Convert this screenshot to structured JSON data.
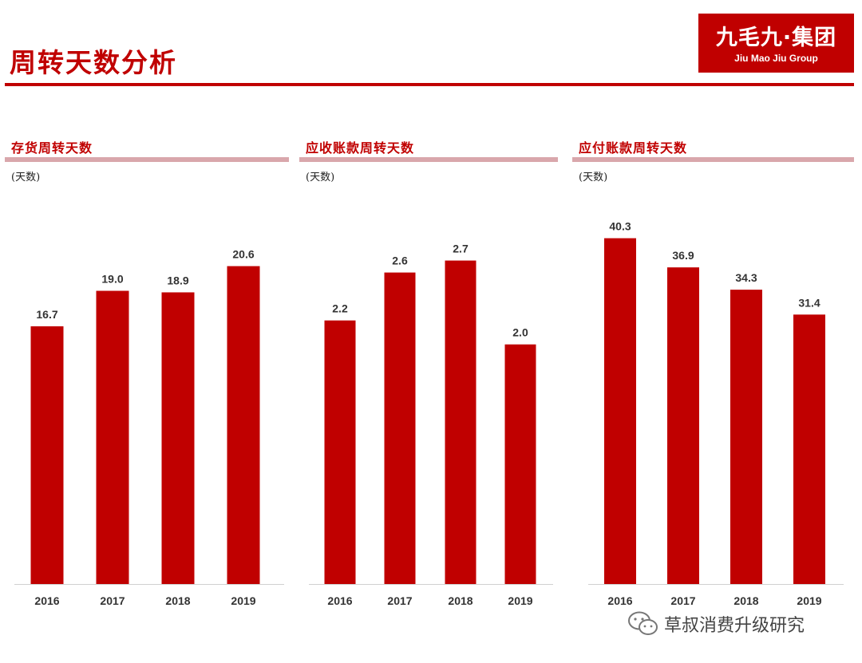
{
  "page": {
    "title": "周转天数分析"
  },
  "logo": {
    "name_cn": "九毛九·集团",
    "name_en": "Jiu Mao Jiu Group"
  },
  "watermark": {
    "text": "草叔消费升级研究",
    "icon": "wechat-icon"
  },
  "colors": {
    "accent": "#c00000",
    "panel_rule": "#d9a7ac",
    "bar": "#c00000"
  },
  "chart_data": [
    {
      "type": "bar",
      "title": "存货周转天数",
      "unit": "(天数)",
      "categories": [
        "2016",
        "2017",
        "2018",
        "2019"
      ],
      "values": [
        16.7,
        19.0,
        18.9,
        20.6
      ],
      "ylim": [
        0,
        24.3
      ],
      "grid": false,
      "labels": [
        "16.7",
        "19.0",
        "18.9",
        "20.6"
      ]
    },
    {
      "type": "bar",
      "title": "应收账款周转天数",
      "unit": "(天数)",
      "categories": [
        "2016",
        "2017",
        "2018",
        "2019"
      ],
      "values": [
        2.2,
        2.6,
        2.7,
        2.0
      ],
      "ylim": [
        0,
        3.13
      ],
      "grid": false,
      "labels": [
        "2.2",
        "2.6",
        "2.7",
        "2.0"
      ]
    },
    {
      "type": "bar",
      "title": "应付账款周转天数",
      "unit": "(天数)",
      "categories": [
        "2016",
        "2017",
        "2018",
        "2019"
      ],
      "values": [
        40.3,
        36.9,
        34.3,
        31.4
      ],
      "ylim": [
        0,
        43.7
      ],
      "grid": false,
      "labels": [
        "40.3",
        "36.9",
        "34.3",
        "31.4"
      ]
    }
  ]
}
